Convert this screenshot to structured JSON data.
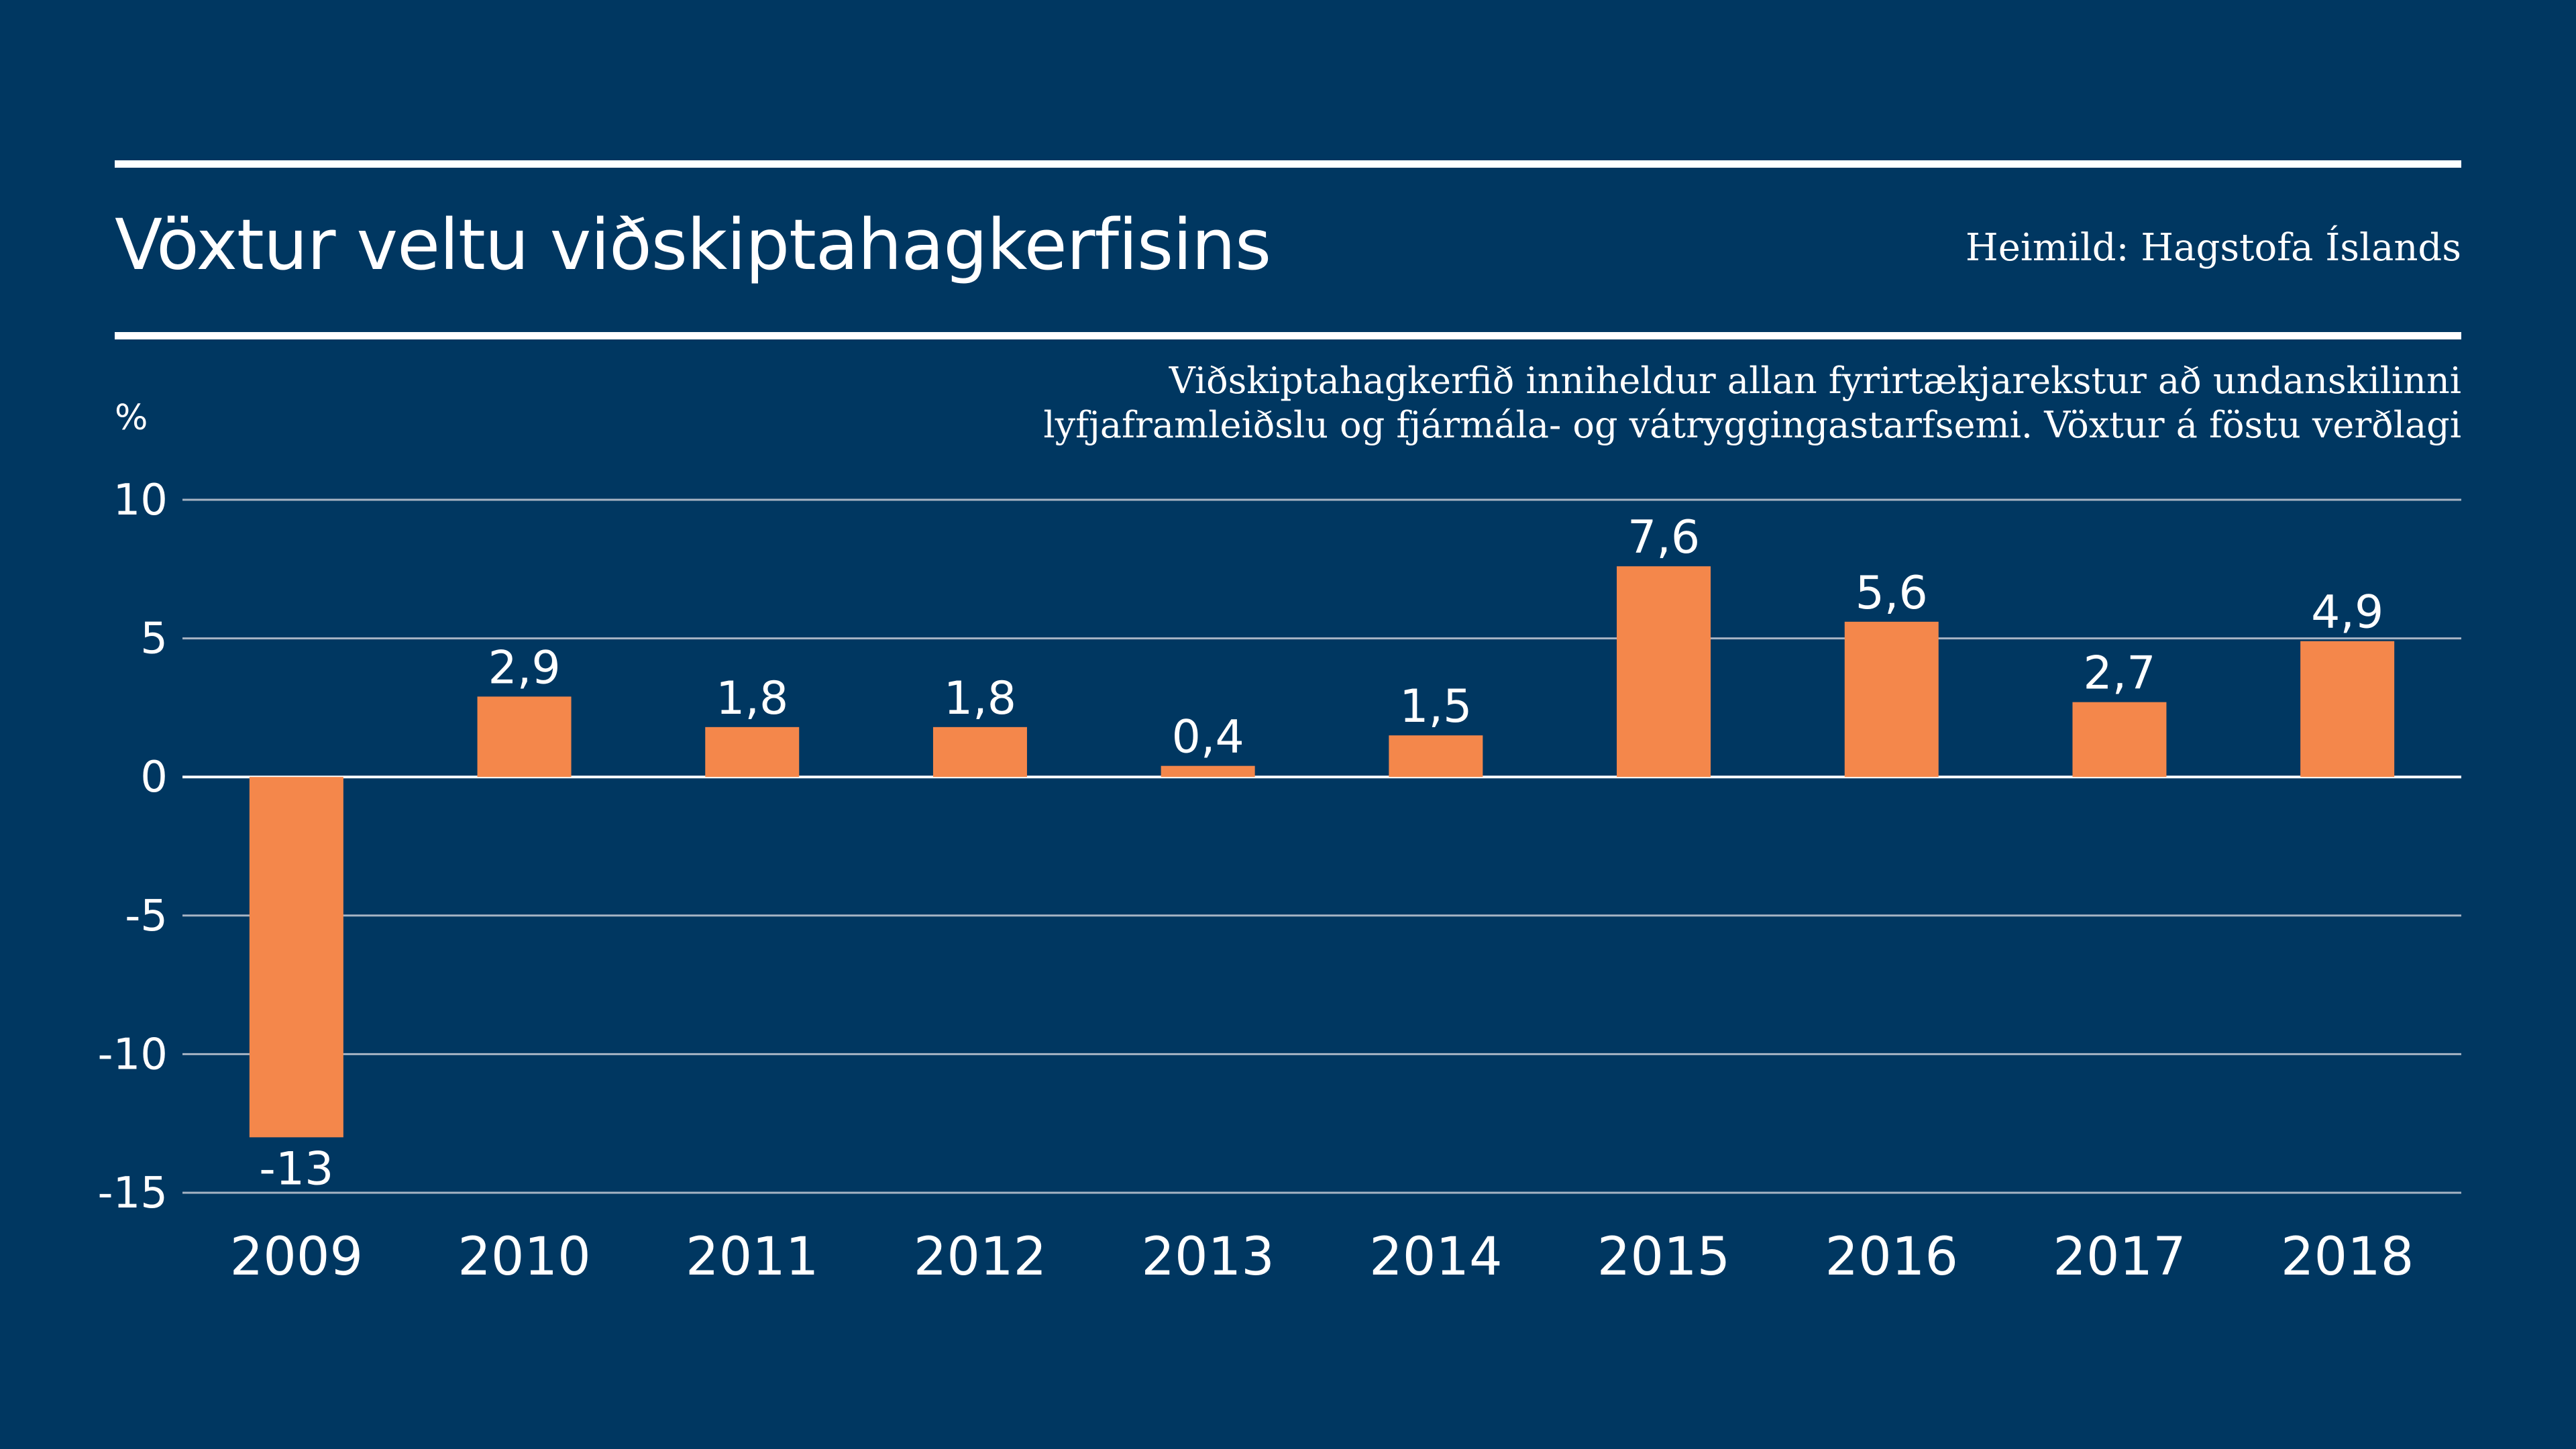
{
  "header": {
    "title": "Vöxtur veltu viðskiptahagkerfisins",
    "source": "Heimild: Hagstofa Íslands",
    "subtitle_lines": [
      "Viðskiptahagkerfið inniheldur allan fyrirtækjarekstur að undanskilinni",
      "lyfjaframleiðslu og fjármála- og vátryggingastarfsemi. Vöxtur á föstu verðlagi"
    ]
  },
  "colors": {
    "background": "#003761",
    "bar": "#F4874B",
    "text": "#FFFFFF",
    "grid": "#A7B4C4"
  },
  "chart_data": {
    "type": "bar",
    "title": "Vöxtur veltu viðskiptahagkerfisins",
    "ylabel": "%",
    "xlabel": "",
    "ylim": [
      -15,
      10
    ],
    "yticks": [
      10,
      5,
      0,
      -5,
      -10,
      -15
    ],
    "ytick_labels": [
      "10",
      "5",
      "0",
      "-5",
      "-10",
      "-15"
    ],
    "grid": true,
    "legend": "none",
    "categories": [
      "2009",
      "2010",
      "2011",
      "2012",
      "2013",
      "2014",
      "2015",
      "2016",
      "2017",
      "2018"
    ],
    "values": [
      -13,
      2.9,
      1.8,
      1.8,
      0.4,
      1.5,
      7.6,
      5.6,
      2.7,
      4.9
    ],
    "value_labels": [
      "-13",
      "2,9",
      "1,8",
      "1,8",
      "0,4",
      "1,5",
      "7,6",
      "5,6",
      "2,7",
      "4,9"
    ]
  }
}
